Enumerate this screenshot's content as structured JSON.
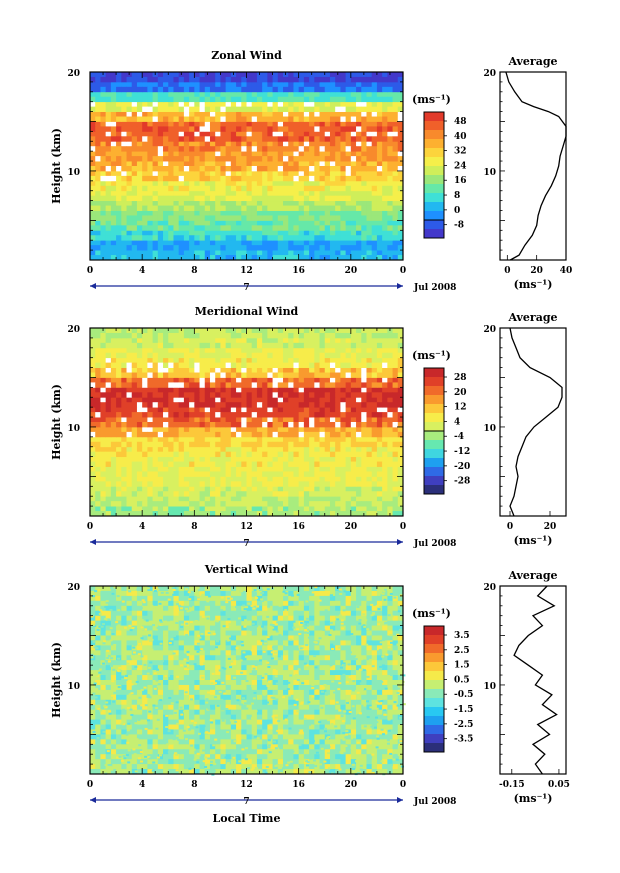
{
  "panels": [
    {
      "title": "Zonal Wind",
      "ylabel": "Height (km)",
      "yticks": [
        "10",
        "20"
      ],
      "xticks": [
        "0",
        "4",
        "8",
        "12",
        "16",
        "20",
        "0"
      ],
      "day_label": "7",
      "date_label": "Jul 2008",
      "cbar_unit": "(ms⁻¹)",
      "cbar_ticks": [
        "48",
        "40",
        "32",
        "24",
        "16",
        "8",
        "0",
        "-8"
      ],
      "cbar_colors": [
        "#4338ca",
        "#2d5ae8",
        "#1e90ff",
        "#22b8f0",
        "#3fe0d6",
        "#66e8a8",
        "#9be77a",
        "#cfee5a",
        "#f5ef4a",
        "#fcd43c",
        "#fdb030",
        "#f88a2c",
        "#f0602a",
        "#e23a2a"
      ],
      "avg_title": "Average",
      "avg_xticks": [
        "0",
        "20",
        "40"
      ],
      "avg_xlim": [
        -5,
        40
      ],
      "avg_xunit": "(ms⁻¹)",
      "avg_profile": [
        [
          2,
          1
        ],
        [
          8,
          1.5
        ],
        [
          12,
          2.5
        ],
        [
          17,
          3.5
        ],
        [
          20,
          4.5
        ],
        [
          21,
          5.5
        ],
        [
          23,
          6.5
        ],
        [
          26,
          7.5
        ],
        [
          30,
          8.5
        ],
        [
          33,
          9.5
        ],
        [
          35,
          10.5
        ],
        [
          36,
          11.5
        ],
        [
          38,
          12.5
        ],
        [
          40,
          13.5
        ],
        [
          40,
          14.5
        ],
        [
          35,
          15.5
        ],
        [
          28,
          16
        ],
        [
          18,
          16.5
        ],
        [
          10,
          17
        ],
        [
          5,
          18
        ],
        [
          1,
          19
        ],
        [
          -1,
          20
        ]
      ]
    },
    {
      "title": "Meridional Wind",
      "ylabel": "Height (km)",
      "yticks": [
        "10",
        "20"
      ],
      "xticks": [
        "0",
        "4",
        "8",
        "12",
        "16",
        "20",
        "0"
      ],
      "day_label": "7",
      "date_label": "Jul 2008",
      "cbar_unit": "(ms⁻¹)",
      "cbar_ticks": [
        "28",
        "20",
        "12",
        "4",
        "-4",
        "-12",
        "-20",
        "-28"
      ],
      "cbar_colors": [
        "#2b2f7a",
        "#3f3fbf",
        "#2f6ae6",
        "#1ea0f0",
        "#3fd6e0",
        "#66e8b0",
        "#a8ec7e",
        "#d8f060",
        "#f7ec4a",
        "#fcc83a",
        "#f99a2e",
        "#f06a2a",
        "#e04028",
        "#c8282a"
      ],
      "avg_title": "Average",
      "avg_xticks": [
        "0",
        "20"
      ],
      "avg_xlim": [
        -5,
        28
      ],
      "avg_xunit": "(ms⁻¹)",
      "avg_profile": [
        [
          2,
          1
        ],
        [
          0,
          2
        ],
        [
          2,
          3
        ],
        [
          3,
          4
        ],
        [
          4,
          5
        ],
        [
          3,
          6
        ],
        [
          4,
          7
        ],
        [
          6,
          8
        ],
        [
          8,
          9
        ],
        [
          12,
          10
        ],
        [
          18,
          11
        ],
        [
          24,
          12
        ],
        [
          26,
          13
        ],
        [
          26,
          14
        ],
        [
          20,
          15
        ],
        [
          10,
          16
        ],
        [
          5,
          17
        ],
        [
          3,
          18
        ],
        [
          1,
          19
        ],
        [
          0,
          20
        ]
      ]
    },
    {
      "title": "Vertical Wind",
      "ylabel": "Height (km)",
      "yticks": [
        "10",
        "20"
      ],
      "xticks": [
        "0",
        "4",
        "8",
        "12",
        "16",
        "20",
        "0"
      ],
      "day_label": "7",
      "date_label": "Jul 2008",
      "cbar_unit": "(ms⁻¹)",
      "cbar_ticks": [
        "3.5",
        "2.5",
        "1.5",
        "0.5",
        "-0.5",
        "-1.5",
        "-2.5",
        "-3.5"
      ],
      "cbar_colors": [
        "#2b2f7a",
        "#3f3fbf",
        "#2f6ae6",
        "#1ea0f0",
        "#28c8f2",
        "#5de3e0",
        "#8aeab8",
        "#c6ef72",
        "#f5ea4a",
        "#fcc83a",
        "#f99a2e",
        "#f06a2a",
        "#e04028",
        "#c8282a"
      ],
      "avg_title": "Average",
      "avg_xticks": [
        "-0.15",
        "0.05"
      ],
      "avg_xlim": [
        -0.2,
        0.08
      ],
      "avg_xunit": "(ms⁻¹)",
      "avg_profile": [
        [
          -0.02,
          1
        ],
        [
          -0.05,
          2
        ],
        [
          -0.01,
          3
        ],
        [
          -0.06,
          4
        ],
        [
          0.01,
          5
        ],
        [
          -0.04,
          6
        ],
        [
          0.04,
          7
        ],
        [
          -0.02,
          8
        ],
        [
          0.02,
          9
        ],
        [
          -0.05,
          10
        ],
        [
          -0.02,
          11
        ],
        [
          -0.08,
          12
        ],
        [
          -0.14,
          13
        ],
        [
          -0.12,
          14
        ],
        [
          -0.08,
          15
        ],
        [
          -0.02,
          16
        ],
        [
          -0.06,
          17
        ],
        [
          0.03,
          18
        ],
        [
          -0.04,
          19
        ],
        [
          0.0,
          20
        ]
      ]
    }
  ],
  "xlabel_bottom": "Local Time",
  "chart_data": [
    {
      "type": "heatmap",
      "title": "Zonal Wind",
      "xlabel": "",
      "ylabel": "Height (km)",
      "x_range_hours": [
        0,
        24
      ],
      "ylim": [
        1,
        20
      ],
      "colorbar_unit": "(ms⁻¹)",
      "colorbar_range": [
        -8,
        48
      ],
      "bands": [
        {
          "y": [
            1,
            2
          ],
          "value": 6
        },
        {
          "y": [
            2,
            3
          ],
          "value": 4
        },
        {
          "y": [
            3,
            4
          ],
          "value": 10
        },
        {
          "y": [
            4,
            5
          ],
          "value": 14
        },
        {
          "y": [
            5,
            6
          ],
          "value": 16
        },
        {
          "y": [
            6,
            7
          ],
          "value": 20
        },
        {
          "y": [
            7,
            8
          ],
          "value": 24
        },
        {
          "y": [
            8,
            9
          ],
          "value": 26
        },
        {
          "y": [
            9,
            10
          ],
          "value": 30
        },
        {
          "y": [
            10,
            11
          ],
          "value": 34
        },
        {
          "y": [
            11,
            12
          ],
          "value": 36
        },
        {
          "y": [
            12,
            13
          ],
          "value": 38
        },
        {
          "y": [
            13,
            14
          ],
          "value": 42
        },
        {
          "y": [
            14,
            15
          ],
          "value": 42
        },
        {
          "y": [
            15,
            16
          ],
          "value": 34
        },
        {
          "y": [
            16,
            17
          ],
          "value": 24
        },
        {
          "y": [
            17,
            18
          ],
          "value": 12
        },
        {
          "y": [
            18,
            19
          ],
          "value": 0
        },
        {
          "y": [
            19,
            20
          ],
          "value": -4
        }
      ],
      "average_profile_unit": "(ms⁻¹)"
    },
    {
      "type": "heatmap",
      "title": "Meridional Wind",
      "xlabel": "",
      "ylabel": "Height (km)",
      "x_range_hours": [
        0,
        24
      ],
      "ylim": [
        1,
        20
      ],
      "colorbar_unit": "(ms⁻¹)",
      "colorbar_range": [
        -28,
        28
      ],
      "bands": [
        {
          "y": [
            1,
            2
          ],
          "value": -2
        },
        {
          "y": [
            2,
            3
          ],
          "value": 0
        },
        {
          "y": [
            3,
            4
          ],
          "value": 2
        },
        {
          "y": [
            4,
            5
          ],
          "value": 4
        },
        {
          "y": [
            5,
            6
          ],
          "value": 4
        },
        {
          "y": [
            6,
            7
          ],
          "value": 5
        },
        {
          "y": [
            7,
            8
          ],
          "value": 6
        },
        {
          "y": [
            8,
            9
          ],
          "value": 8
        },
        {
          "y": [
            9,
            10
          ],
          "value": 12
        },
        {
          "y": [
            10,
            11
          ],
          "value": 18
        },
        {
          "y": [
            11,
            12
          ],
          "value": 22
        },
        {
          "y": [
            12,
            13
          ],
          "value": 24
        },
        {
          "y": [
            13,
            14
          ],
          "value": 24
        },
        {
          "y": [
            14,
            15
          ],
          "value": 18
        },
        {
          "y": [
            15,
            16
          ],
          "value": 10
        },
        {
          "y": [
            16,
            17
          ],
          "value": 6
        },
        {
          "y": [
            17,
            18
          ],
          "value": 4
        },
        {
          "y": [
            18,
            19
          ],
          "value": 2
        },
        {
          "y": [
            19,
            20
          ],
          "value": 0
        }
      ],
      "average_profile_unit": "(ms⁻¹)"
    },
    {
      "type": "heatmap",
      "title": "Vertical Wind",
      "xlabel": "Local Time",
      "ylabel": "Height (km)",
      "x_range_hours": [
        0,
        24
      ],
      "ylim": [
        1,
        20
      ],
      "colorbar_unit": "(ms⁻¹)",
      "colorbar_range": [
        -3.5,
        3.5
      ],
      "bands": [
        {
          "y": [
            1,
            20
          ],
          "value": 0.0
        }
      ],
      "average_profile_unit": "(ms⁻¹)"
    }
  ]
}
